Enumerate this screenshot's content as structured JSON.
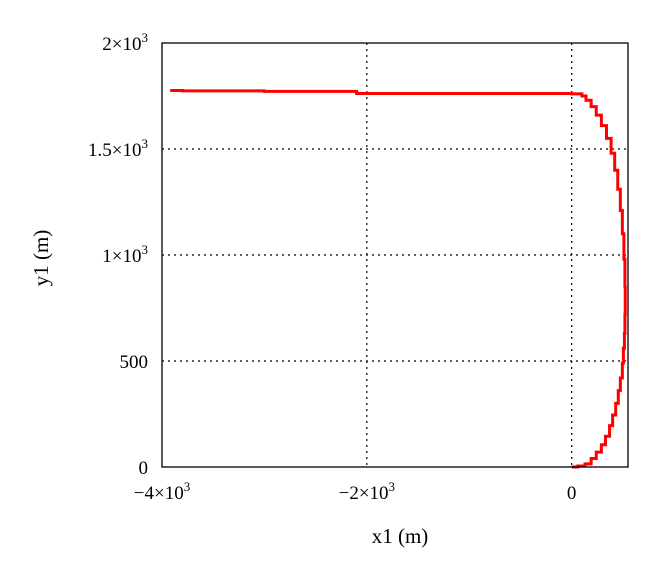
{
  "chart_data": {
    "type": "line",
    "title": "",
    "xlabel": "x1 (m)",
    "ylabel": "y1 (m)",
    "xlim": [
      -4000,
      550
    ],
    "ylim": [
      0,
      2000
    ],
    "grid": true,
    "grid_style": "dotted",
    "x_ticks": [
      {
        "value": -4000,
        "label": "−4×10",
        "sup": "3"
      },
      {
        "value": -2000,
        "label": "−2×10",
        "sup": "3"
      },
      {
        "value": 0,
        "label": "0",
        "sup": ""
      }
    ],
    "y_ticks": [
      {
        "value": 0,
        "label": "0",
        "sup": ""
      },
      {
        "value": 500,
        "label": "500",
        "sup": ""
      },
      {
        "value": 1000,
        "label": "1×10",
        "sup": "3"
      },
      {
        "value": 1500,
        "label": "1.5×10",
        "sup": "3"
      },
      {
        "value": 2000,
        "label": "2×10",
        "sup": "3"
      }
    ],
    "series": [
      {
        "color": "#ff0000",
        "step": true,
        "points": [
          [
            0,
            0
          ],
          [
            60,
            5
          ],
          [
            130,
            15
          ],
          [
            190,
            40
          ],
          [
            240,
            70
          ],
          [
            290,
            105
          ],
          [
            330,
            145
          ],
          [
            370,
            195
          ],
          [
            400,
            245
          ],
          [
            430,
            300
          ],
          [
            455,
            360
          ],
          [
            475,
            420
          ],
          [
            495,
            490
          ],
          [
            505,
            560
          ],
          [
            515,
            630
          ],
          [
            520,
            720
          ],
          [
            523,
            850
          ],
          [
            520,
            980
          ],
          [
            510,
            1100
          ],
          [
            495,
            1210
          ],
          [
            475,
            1310
          ],
          [
            450,
            1400
          ],
          [
            420,
            1480
          ],
          [
            385,
            1550
          ],
          [
            340,
            1610
          ],
          [
            290,
            1660
          ],
          [
            240,
            1700
          ],
          [
            190,
            1730
          ],
          [
            140,
            1750
          ],
          [
            100,
            1760
          ],
          [
            0,
            1762
          ],
          [
            -1000,
            1762
          ],
          [
            -2000,
            1762
          ],
          [
            -2100,
            1772
          ],
          [
            -2500,
            1772
          ],
          [
            -3000,
            1774
          ],
          [
            -3800,
            1776
          ],
          [
            -3920,
            1776
          ]
        ]
      }
    ]
  }
}
